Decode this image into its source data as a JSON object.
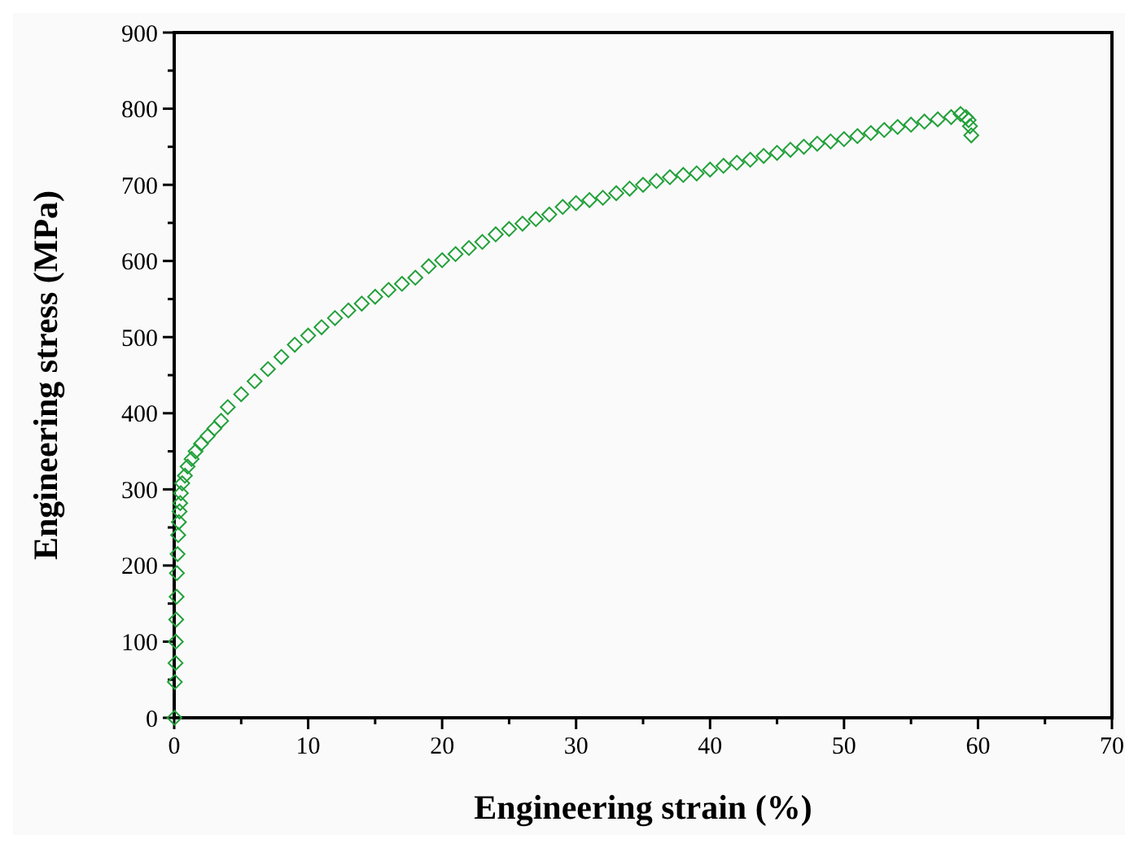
{
  "chart_data": {
    "type": "scatter",
    "xlabel": "Engineering strain (%)",
    "ylabel": "Engineering stress (MPa)",
    "marker": "diamond",
    "grid": false,
    "xlim": [
      0,
      70
    ],
    "ylim": [
      0,
      900
    ],
    "xticks": [
      0,
      {
        "value": 5,
        "label": null
      },
      10,
      {
        "value": 15,
        "label": null
      },
      20,
      {
        "value": 25,
        "label": null
      },
      30,
      {
        "value": 35,
        "label": null
      },
      40,
      {
        "value": 45,
        "label": null
      },
      50,
      {
        "value": 55,
        "label": null
      },
      60,
      {
        "value": 65,
        "label": null
      },
      70
    ],
    "yticks": [
      0,
      {
        "value": 50,
        "label": null
      },
      100,
      {
        "value": 150,
        "label": null
      },
      200,
      {
        "value": 250,
        "label": null
      },
      300,
      {
        "value": 350,
        "label": null
      },
      400,
      {
        "value": 450,
        "label": null
      },
      500,
      {
        "value": 550,
        "label": null
      },
      600,
      {
        "value": 650,
        "label": null
      },
      700,
      {
        "value": 750,
        "label": null
      },
      800,
      {
        "value": 850,
        "label": null
      },
      900
    ],
    "series": [
      {
        "color": "#22a03a",
        "x": [
          0.02,
          0.05,
          0.1,
          0.12,
          0.15,
          0.18,
          0.2,
          0.25,
          0.3,
          0.35,
          0.4,
          0.45,
          0.5,
          0.6,
          0.8,
          1,
          1.3,
          1.6,
          2,
          2.5,
          3,
          3.5,
          4,
          5,
          6,
          7,
          8,
          9,
          10,
          11,
          12,
          13,
          14,
          15,
          16,
          17,
          18,
          19,
          20,
          21,
          22,
          23,
          24,
          25,
          26,
          27,
          28,
          29,
          30,
          31,
          32,
          33,
          34,
          35,
          36,
          37,
          38,
          39,
          40,
          41,
          42,
          43,
          44,
          45,
          46,
          47,
          48,
          49,
          50,
          51,
          52,
          53,
          54,
          55,
          56,
          57,
          58,
          58.7,
          59.1,
          59.3,
          59.4,
          59.5
        ],
        "values": [
          0,
          47,
          72,
          100,
          129,
          159,
          190,
          215,
          240,
          257,
          271,
          282,
          295,
          308,
          318,
          330,
          340,
          350,
          360,
          370,
          380,
          390,
          408,
          425,
          442,
          458,
          474,
          490,
          502,
          513,
          525,
          535,
          544,
          553,
          562,
          570,
          578,
          593,
          601,
          609,
          617,
          625,
          635,
          642,
          649,
          655,
          661,
          671,
          676,
          680,
          683,
          689,
          695,
          700,
          705,
          710,
          713,
          715,
          720,
          725,
          729,
          733,
          738,
          742,
          746,
          750,
          754,
          757,
          760,
          764,
          768,
          772,
          776,
          779,
          783,
          786,
          789,
          793,
          789,
          785,
          777,
          765
        ]
      }
    ]
  }
}
